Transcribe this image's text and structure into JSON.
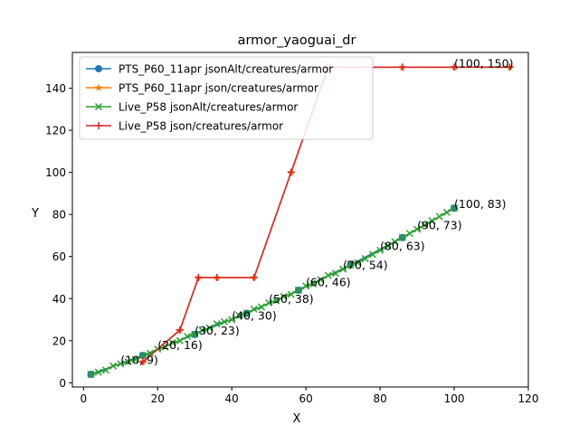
{
  "chart_data": {
    "type": "line",
    "title": "armor_yaoguai_dr",
    "xlabel": "X",
    "ylabel": "Y",
    "xlim": [
      -3,
      120
    ],
    "ylim": [
      -2,
      157
    ],
    "xticks": [
      0,
      20,
      40,
      60,
      80,
      100,
      120
    ],
    "yticks": [
      0,
      20,
      40,
      60,
      80,
      100,
      120,
      140
    ],
    "legend_position": "top-left",
    "grid": false,
    "series": [
      {
        "name": "PTS_P60_11apr jsonAlt/creatures/armor",
        "color": "#1f77b4",
        "marker": "o",
        "x": [
          2,
          16,
          30,
          44,
          58,
          72,
          86,
          100
        ],
        "y": [
          4,
          13,
          23,
          33,
          44,
          56,
          69,
          83
        ]
      },
      {
        "name": "PTS_P60_11apr json/creatures/armor",
        "color": "#ff7f0e",
        "marker": "*",
        "x": [
          16,
          26,
          31,
          36,
          46,
          56,
          66,
          86,
          100,
          115
        ],
        "y": [
          10,
          25,
          50,
          50,
          50,
          100,
          150,
          150,
          150,
          150
        ]
      },
      {
        "name": "Live_P58 jsonAlt/creatures/armor",
        "color": "#2ca02c",
        "marker": "x",
        "x": [
          2,
          4,
          6,
          8,
          10,
          12,
          14,
          16,
          18,
          20,
          22,
          24,
          26,
          28,
          30,
          32,
          34,
          36,
          38,
          40,
          42,
          44,
          46,
          48,
          50,
          52,
          54,
          56,
          58,
          60,
          62,
          64,
          66,
          68,
          70,
          72,
          74,
          76,
          78,
          80,
          82,
          84,
          86,
          88,
          90,
          92,
          94,
          96,
          98,
          100
        ],
        "y": [
          4,
          5,
          6,
          8,
          9,
          10,
          11,
          13,
          14,
          16,
          17,
          19,
          20,
          22,
          23,
          25,
          26,
          28,
          29,
          30,
          32,
          33,
          35,
          36,
          38,
          39,
          41,
          42,
          44,
          46,
          47,
          49,
          51,
          52,
          54,
          56,
          57,
          59,
          61,
          63,
          65,
          67,
          69,
          71,
          73,
          75,
          77,
          79,
          81,
          83
        ]
      },
      {
        "name": "Live_P58 json/creatures/armor",
        "color": "#d62728",
        "marker": "+",
        "x": [
          16,
          26,
          31,
          36,
          46,
          56,
          66,
          86,
          100,
          115
        ],
        "y": [
          10,
          25,
          50,
          50,
          50,
          100,
          150,
          150,
          150,
          150
        ]
      }
    ],
    "annotations": [
      {
        "text": "(10, 9)",
        "x": 10,
        "y": 9
      },
      {
        "text": "(20, 16)",
        "x": 20,
        "y": 16
      },
      {
        "text": "(30, 23)",
        "x": 30,
        "y": 23
      },
      {
        "text": "(40, 30)",
        "x": 40,
        "y": 30
      },
      {
        "text": "(50, 38)",
        "x": 50,
        "y": 38
      },
      {
        "text": "(60, 46)",
        "x": 60,
        "y": 46
      },
      {
        "text": "(70, 54)",
        "x": 70,
        "y": 54
      },
      {
        "text": "(80, 63)",
        "x": 80,
        "y": 63
      },
      {
        "text": "(90, 73)",
        "x": 90,
        "y": 73
      },
      {
        "text": "(100, 83)",
        "x": 100,
        "y": 83
      },
      {
        "text": "(100, 150)",
        "x": 100,
        "y": 150
      }
    ]
  }
}
